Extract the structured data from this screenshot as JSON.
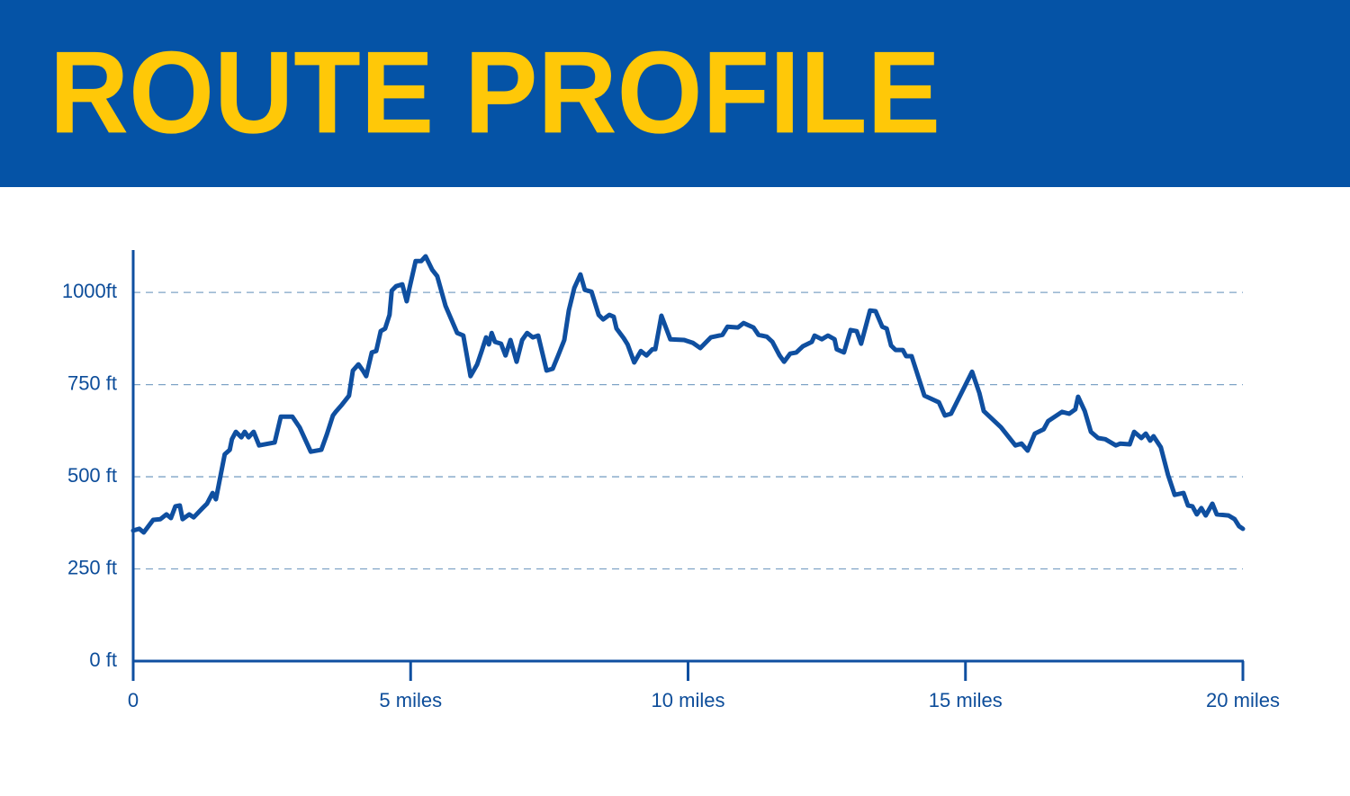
{
  "chart_data": {
    "type": "line",
    "title": "ROUTE PROFILE",
    "color": "#0f4fa0",
    "xlim": [
      0,
      20
    ],
    "xticks": [
      0,
      {
        "value": 5,
        "label": "5 miles"
      },
      {
        "value": 10,
        "label": "10 miles"
      },
      {
        "value": 15,
        "label": "15 miles"
      },
      {
        "value": 20,
        "label": "20 miles"
      }
    ],
    "ylim": [
      0,
      1115
    ],
    "yticks": [
      {
        "value": 0,
        "label": "0 ft"
      },
      {
        "value": 250,
        "label": "250 ft"
      },
      {
        "value": 500,
        "label": "500 ft"
      },
      {
        "value": 750,
        "label": "750 ft"
      },
      {
        "value": 1000,
        "label": "1000ft"
      }
    ],
    "grid": true,
    "x": [
      0,
      0.11,
      0.19,
      0.36,
      0.49,
      0.6,
      0.68,
      0.76,
      0.84,
      0.89,
      1.01,
      1.09,
      1.25,
      1.33,
      1.43,
      1.49,
      1.57,
      1.65,
      1.74,
      1.78,
      1.85,
      1.95,
      2.01,
      2.08,
      2.17,
      2.27,
      2.55,
      2.66,
      2.87,
      3.0,
      3.11,
      3.2,
      3.39,
      3.49,
      3.6,
      3.65,
      3.76,
      3.89,
      3.96,
      4.06,
      4.14,
      4.2,
      4.3,
      4.38,
      4.46,
      4.54,
      4.62,
      4.66,
      4.74,
      4.85,
      4.93,
      4.98,
      5.09,
      5.19,
      5.27,
      5.39,
      5.48,
      5.63,
      5.84,
      5.95,
      6.08,
      6.2,
      6.28,
      6.36,
      6.41,
      6.46,
      6.52,
      6.63,
      6.71,
      6.8,
      6.91,
      7.01,
      7.1,
      7.2,
      7.3,
      7.45,
      7.56,
      7.66,
      7.77,
      7.85,
      7.95,
      8.06,
      8.14,
      8.26,
      8.39,
      8.47,
      8.58,
      8.66,
      8.71,
      8.84,
      8.91,
      9.03,
      9.15,
      9.25,
      9.36,
      9.41,
      9.52,
      9.68,
      9.93,
      10.09,
      10.22,
      10.41,
      10.62,
      10.71,
      10.9,
      11.0,
      11.18,
      11.27,
      11.42,
      11.52,
      11.65,
      11.73,
      11.84,
      11.95,
      12.07,
      12.23,
      12.28,
      12.41,
      12.52,
      12.64,
      12.68,
      12.81,
      12.93,
      13.04,
      13.12,
      13.28,
      13.38,
      13.5,
      13.58,
      13.66,
      13.74,
      13.87,
      13.93,
      14.03,
      14.26,
      14.52,
      14.63,
      14.74,
      15.12,
      15.25,
      15.33,
      15.64,
      15.9,
      16.01,
      16.12,
      16.25,
      16.41,
      16.49,
      16.74,
      16.87,
      16.98,
      17.03,
      17.15,
      17.26,
      17.39,
      17.52,
      17.71,
      17.79,
      17.96,
      18.04,
      18.17,
      18.25,
      18.33,
      18.39,
      18.52,
      18.65,
      18.77,
      18.93,
      19.01,
      19.09,
      19.17,
      19.25,
      19.33,
      19.45,
      19.53,
      19.74,
      19.85,
      19.93,
      20.0
    ],
    "values": [
      354,
      359,
      349,
      383,
      385,
      398,
      388,
      420,
      422,
      385,
      398,
      390,
      415,
      427,
      456,
      439,
      500,
      561,
      573,
      602,
      622,
      607,
      622,
      607,
      622,
      585,
      593,
      663,
      663,
      634,
      598,
      568,
      573,
      615,
      666,
      676,
      695,
      720,
      788,
      805,
      788,
      773,
      837,
      841,
      895,
      902,
      939,
      1005,
      1017,
      1022,
      976,
      1012,
      1085,
      1085,
      1098,
      1061,
      1044,
      963,
      890,
      883,
      773,
      805,
      841,
      878,
      859,
      890,
      866,
      861,
      829,
      871,
      812,
      871,
      890,
      878,
      883,
      788,
      793,
      829,
      871,
      951,
      1012,
      1049,
      1007,
      1002,
      939,
      927,
      939,
      934,
      902,
      876,
      859,
      810,
      841,
      829,
      846,
      846,
      937,
      873,
      871,
      863,
      849,
      878,
      885,
      907,
      905,
      917,
      905,
      885,
      880,
      866,
      829,
      812,
      834,
      837,
      854,
      866,
      883,
      873,
      883,
      873,
      846,
      837,
      898,
      895,
      861,
      951,
      949,
      907,
      902,
      856,
      844,
      844,
      827,
      827,
      720,
      702,
      666,
      671,
      785,
      727,
      678,
      634,
      585,
      590,
      571,
      617,
      629,
      651,
      676,
      671,
      683,
      717,
      678,
      622,
      605,
      602,
      585,
      590,
      588,
      622,
      605,
      617,
      598,
      610,
      580,
      505,
      451,
      456,
      422,
      420,
      398,
      415,
      395,
      427,
      398,
      395,
      385,
      366,
      359
    ]
  }
}
